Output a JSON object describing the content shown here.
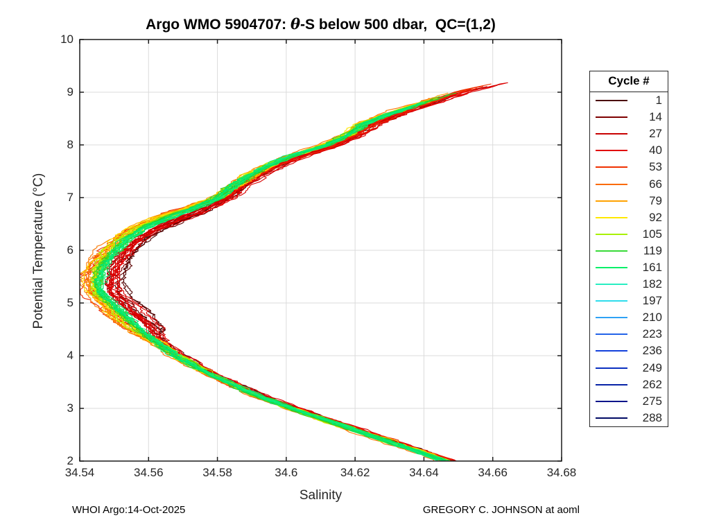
{
  "title": {
    "prefix": "Argo WMO 5904707: ",
    "theta": "θ",
    "suffix": "-S below 500 dbar,  QC=(1,2)"
  },
  "axes": {
    "xlabel": "Salinity",
    "ylabel": "Potential Temperature (°C)",
    "xlim": [
      34.54,
      34.68
    ],
    "ylim": [
      2,
      10
    ],
    "xtick_labels": [
      "34.54",
      "34.56",
      "34.58",
      "34.6",
      "34.62",
      "34.64",
      "34.66",
      "34.68"
    ],
    "xtick_values": [
      34.54,
      34.56,
      34.58,
      34.6,
      34.62,
      34.64,
      34.66,
      34.68
    ],
    "ytick_labels": [
      "2",
      "3",
      "4",
      "5",
      "6",
      "7",
      "8",
      "9",
      "10"
    ],
    "ytick_values": [
      2,
      3,
      4,
      5,
      6,
      7,
      8,
      9,
      10
    ]
  },
  "footer": {
    "left": "WHOI Argo:14-Oct-2025",
    "right": "GREGORY C. JOHNSON at aoml"
  },
  "legend": {
    "title": "Cycle #",
    "entries": [
      {
        "label": "1",
        "color": "#4a0000"
      },
      {
        "label": "14",
        "color": "#7e0000"
      },
      {
        "label": "27",
        "color": "#c80000"
      },
      {
        "label": "40",
        "color": "#e10000"
      },
      {
        "label": "53",
        "color": "#ef3000"
      },
      {
        "label": "66",
        "color": "#fa6a00"
      },
      {
        "label": "79",
        "color": "#ffa200"
      },
      {
        "label": "92",
        "color": "#ffe800"
      },
      {
        "label": "105",
        "color": "#a8f000"
      },
      {
        "label": "119",
        "color": "#38da38"
      },
      {
        "label": "161",
        "color": "#00f068"
      },
      {
        "label": "182",
        "color": "#28eec2"
      },
      {
        "label": "197",
        "color": "#2edcec"
      },
      {
        "label": "210",
        "color": "#2ea2f5"
      },
      {
        "label": "223",
        "color": "#2363e8"
      },
      {
        "label": "236",
        "color": "#1240dc"
      },
      {
        "label": "249",
        "color": "#0a2fc0"
      },
      {
        "label": "262",
        "color": "#0722a6"
      },
      {
        "label": "275",
        "color": "#03148a"
      },
      {
        "label": "288",
        "color": "#000a64"
      }
    ]
  },
  "colors": {
    "axis": "#1a1a1a",
    "grid": "#dbdbdb",
    "background": "#ffffff",
    "tick_text": "#262626"
  },
  "chart_data": {
    "type": "line",
    "title": "Argo WMO 5904707: θ-S below 500 dbar,  QC=(1,2)",
    "xlabel": "Salinity",
    "ylabel": "Potential Temperature (°C)",
    "xlim": [
      34.54,
      34.68
    ],
    "ylim": [
      2,
      10
    ],
    "grid": true,
    "legend_title": "Cycle #",
    "legend_position": "outside-right",
    "legend_cycles": [
      1,
      14,
      27,
      40,
      53,
      66,
      79,
      92,
      105,
      119,
      161,
      182,
      197,
      210,
      223,
      236,
      249,
      262,
      275,
      288
    ],
    "description": "Overlaid theta-S profiles for ~many float cycles forming a C-shaped envelope; colors run dark red (early cycles) through orange, yellow, green; blue late-cycle lines are not visible in the plotted band.",
    "spine_T_S": [
      [
        9.2,
        34.663
      ],
      [
        9.0,
        34.649
      ],
      [
        8.8,
        34.64
      ],
      [
        8.6,
        34.631
      ],
      [
        8.4,
        34.623
      ],
      [
        8.2,
        34.6185
      ],
      [
        8.0,
        34.612
      ],
      [
        7.8,
        34.602
      ],
      [
        7.6,
        34.595
      ],
      [
        7.4,
        34.589
      ],
      [
        7.2,
        34.5845
      ],
      [
        7.0,
        34.5805
      ],
      [
        6.8,
        34.573
      ],
      [
        6.6,
        34.5645
      ],
      [
        6.4,
        34.5575
      ],
      [
        6.2,
        34.553
      ],
      [
        6.0,
        34.55
      ],
      [
        5.8,
        34.5475
      ],
      [
        5.6,
        34.546
      ],
      [
        5.4,
        34.5452
      ],
      [
        5.2,
        34.5456
      ],
      [
        5.0,
        34.549
      ],
      [
        4.8,
        34.552
      ],
      [
        4.6,
        34.5555
      ],
      [
        4.4,
        34.559
      ],
      [
        4.2,
        34.5635
      ],
      [
        4.0,
        34.568
      ],
      [
        3.8,
        34.5735
      ],
      [
        3.6,
        34.5795
      ],
      [
        3.4,
        34.586
      ],
      [
        3.2,
        34.593
      ],
      [
        3.0,
        34.6015
      ],
      [
        2.8,
        34.6105
      ],
      [
        2.6,
        34.6195
      ],
      [
        2.4,
        34.6285
      ],
      [
        2.2,
        34.6375
      ],
      [
        2.0,
        34.6465
      ]
    ],
    "band_groups": [
      {
        "name": "darkred",
        "colors": [
          "#5c0000",
          "#7c0000",
          "#4a0000"
        ],
        "count": 6,
        "off_upper": 0.0018,
        "off_turn": 0.0062,
        "off_lower": 0.0011,
        "spread": 0.0018,
        "tmax": [
          8.85,
          9.08
        ],
        "seed": 11
      },
      {
        "name": "red",
        "colors": [
          "#d80000",
          "#e60000",
          "#c20000"
        ],
        "count": 13,
        "off_upper": 0.0028,
        "off_turn": 0.004,
        "off_lower": 0.0013,
        "spread": 0.003,
        "tmax": [
          8.85,
          9.22
        ],
        "seed": 22
      },
      {
        "name": "orangered",
        "colors": [
          "#f03400",
          "#ee2600"
        ],
        "count": 7,
        "off_upper": 0.0008,
        "off_turn": -0.0022,
        "off_lower": 0.0006,
        "spread": 0.0022,
        "tmax": [
          8.8,
          9.18
        ],
        "seed": 33
      },
      {
        "name": "orange",
        "colors": [
          "#fa7800",
          "#ff9e00"
        ],
        "count": 7,
        "off_upper": -0.0014,
        "off_turn": -0.003,
        "off_lower": -0.0005,
        "spread": 0.0018,
        "tmax": [
          8.7,
          9.0
        ],
        "seed": 44
      },
      {
        "name": "yellow",
        "colors": [
          "#ffe600",
          "#f2dc00"
        ],
        "count": 7,
        "off_upper": -0.001,
        "off_turn": -0.002,
        "off_lower": 0.0001,
        "spread": 0.0016,
        "tmax": [
          8.65,
          8.9
        ],
        "seed": 55
      },
      {
        "name": "yellowgreen",
        "colors": [
          "#aaf000",
          "#8ee000"
        ],
        "count": 7,
        "off_upper": -0.0005,
        "off_turn": -0.001,
        "off_lower": 0.0,
        "spread": 0.0014,
        "tmax": [
          8.65,
          8.9
        ],
        "seed": 66
      },
      {
        "name": "green",
        "colors": [
          "#2fd42f",
          "#28c828"
        ],
        "count": 9,
        "off_upper": 0.0,
        "off_turn": 0.0002,
        "off_lower": 0.0,
        "spread": 0.0013,
        "tmax": [
          8.7,
          9.02
        ],
        "seed": 77
      },
      {
        "name": "springgreen",
        "colors": [
          "#00e870",
          "#10f07e"
        ],
        "count": 7,
        "off_upper": -0.0002,
        "off_turn": 0.0006,
        "off_lower": 0.0001,
        "spread": 0.0011,
        "tmax": [
          8.6,
          8.85
        ],
        "seed": 88
      }
    ],
    "tmin": 2.0
  }
}
